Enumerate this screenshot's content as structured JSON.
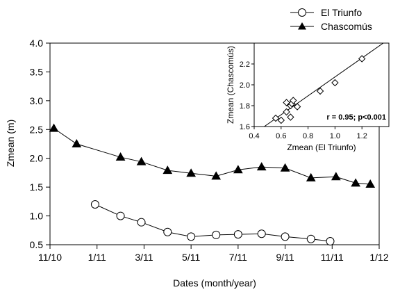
{
  "chart_data": [
    {
      "type": "line",
      "xlabel": "Dates (month/year)",
      "ylabel": "Zmean (m)",
      "x_ticks": [
        "11/10",
        "1/11",
        "3/11",
        "5/11",
        "7/11",
        "9/11",
        "11/11",
        "1/12"
      ],
      "ylim": [
        0.5,
        4.0
      ],
      "y_ticks": [
        "0.5",
        "1.0",
        "1.5",
        "2.0",
        "2.5",
        "3.0",
        "3.5",
        "4.0"
      ],
      "legend_position": "top-right",
      "grid": false,
      "series": [
        {
          "name": "El Triunfo",
          "marker": "open-circle",
          "color": "#000000",
          "x": [
            "2010-12-29",
            "2011-02-01",
            "2011-02-28",
            "2011-04-01",
            "2011-05-01",
            "2011-06-03",
            "2011-07-01",
            "2011-08-01",
            "2011-09-01",
            "2011-10-04",
            "2011-10-29"
          ],
          "y": [
            1.2,
            1.0,
            0.89,
            0.72,
            0.64,
            0.67,
            0.68,
            0.69,
            0.64,
            0.6,
            0.56
          ]
        },
        {
          "name": "Chascomús",
          "marker": "filled-triangle",
          "color": "#000000",
          "x": [
            "2010-11-06",
            "2010-12-05",
            "2011-02-01",
            "2011-02-28",
            "2011-04-01",
            "2011-05-01",
            "2011-06-03",
            "2011-07-01",
            "2011-08-01",
            "2011-09-01",
            "2011-10-04",
            "2011-11-06",
            "2011-12-01",
            "2011-12-20"
          ],
          "y": [
            2.52,
            2.25,
            2.02,
            1.94,
            1.79,
            1.74,
            1.69,
            1.8,
            1.85,
            1.83,
            1.66,
            1.68,
            1.57,
            1.55
          ]
        }
      ]
    },
    {
      "type": "scatter",
      "xlabel": "Zmean (El Triunfo)",
      "ylabel": "Zmean (Chascomús)",
      "xlim": [
        0.4,
        1.4
      ],
      "ylim": [
        1.6,
        2.4
      ],
      "x_ticks": [
        "0.4",
        "0.6",
        "0.8",
        "1.0",
        "1.2"
      ],
      "y_ticks": [
        "1.6",
        "1.8",
        "2.0",
        "2.2"
      ],
      "annotation": "r = 0.95; p<0.001",
      "marker": "open-diamond",
      "points": [
        [
          0.56,
          1.68
        ],
        [
          0.6,
          1.66
        ],
        [
          0.64,
          1.74
        ],
        [
          0.64,
          1.83
        ],
        [
          0.67,
          1.69
        ],
        [
          0.67,
          1.8
        ],
        [
          0.68,
          1.82
        ],
        [
          0.69,
          1.85
        ],
        [
          0.72,
          1.79
        ],
        [
          0.89,
          1.94
        ],
        [
          1.0,
          2.02
        ],
        [
          1.2,
          2.25
        ]
      ],
      "fit_line": [
        [
          0.42,
          1.55
        ],
        [
          1.38,
          2.42
        ]
      ]
    }
  ]
}
